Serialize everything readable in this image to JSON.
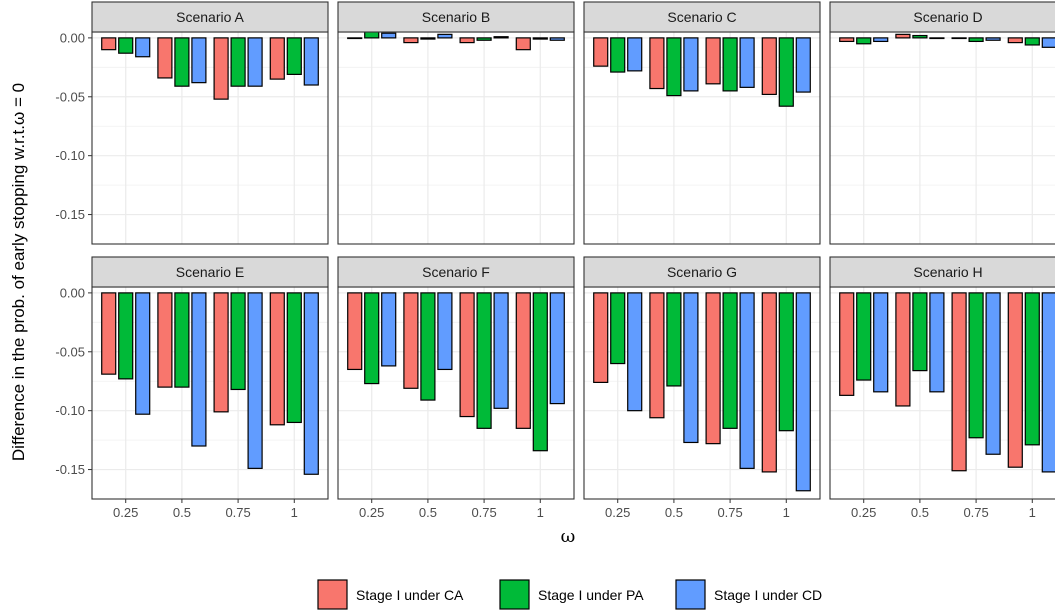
{
  "chart_data": {
    "type": "bar",
    "ylabel": "Difference in the prob. of early stopping w.r.t.ω = 0",
    "xlabel": "ω",
    "categories": [
      "0.25",
      "0.5",
      "0.75",
      "1"
    ],
    "ylim": [
      -0.175,
      0.005
    ],
    "yticks": [
      0.0,
      -0.05,
      -0.1,
      -0.15
    ],
    "ytick_labels": [
      "0.00",
      "-0.05",
      "-0.10",
      "-0.15"
    ],
    "grid": true,
    "legend_position": "bottom",
    "series_names": [
      "Stage I under CA",
      "Stage I under PA",
      "Stage I under CD"
    ],
    "colors": [
      "#F8766D",
      "#00BA38",
      "#619CFF"
    ],
    "panels": [
      {
        "title": "Scenario A",
        "series": [
          {
            "name": "Stage I under CA",
            "values": [
              -0.01,
              -0.034,
              -0.052,
              -0.035
            ]
          },
          {
            "name": "Stage I under PA",
            "values": [
              -0.013,
              -0.041,
              -0.041,
              -0.031
            ]
          },
          {
            "name": "Stage I under CD",
            "values": [
              -0.016,
              -0.038,
              -0.041,
              -0.04
            ]
          }
        ]
      },
      {
        "title": "Scenario B",
        "series": [
          {
            "name": "Stage I under CA",
            "values": [
              0.0,
              -0.004,
              -0.004,
              -0.01
            ]
          },
          {
            "name": "Stage I under PA",
            "values": [
              0.008,
              -0.001,
              -0.002,
              -0.001
            ]
          },
          {
            "name": "Stage I under CD",
            "values": [
              0.004,
              0.003,
              0.001,
              -0.002
            ]
          }
        ]
      },
      {
        "title": "Scenario C",
        "series": [
          {
            "name": "Stage I under CA",
            "values": [
              -0.024,
              -0.043,
              -0.039,
              -0.048
            ]
          },
          {
            "name": "Stage I under PA",
            "values": [
              -0.029,
              -0.049,
              -0.045,
              -0.058
            ]
          },
          {
            "name": "Stage I under CD",
            "values": [
              -0.028,
              -0.045,
              -0.042,
              -0.046
            ]
          }
        ]
      },
      {
        "title": "Scenario D",
        "series": [
          {
            "name": "Stage I under CA",
            "values": [
              -0.003,
              0.003,
              0.0,
              -0.004
            ]
          },
          {
            "name": "Stage I under PA",
            "values": [
              -0.005,
              0.002,
              -0.003,
              -0.006
            ]
          },
          {
            "name": "Stage I under CD",
            "values": [
              -0.003,
              0.0,
              -0.002,
              -0.008
            ]
          }
        ]
      },
      {
        "title": "Scenario E",
        "series": [
          {
            "name": "Stage I under CA",
            "values": [
              -0.069,
              -0.08,
              -0.101,
              -0.112
            ]
          },
          {
            "name": "Stage I under PA",
            "values": [
              -0.073,
              -0.08,
              -0.082,
              -0.11
            ]
          },
          {
            "name": "Stage I under CD",
            "values": [
              -0.103,
              -0.13,
              -0.149,
              -0.154
            ]
          }
        ]
      },
      {
        "title": "Scenario F",
        "series": [
          {
            "name": "Stage I under CA",
            "values": [
              -0.065,
              -0.081,
              -0.105,
              -0.115
            ]
          },
          {
            "name": "Stage I under PA",
            "values": [
              -0.077,
              -0.091,
              -0.115,
              -0.134
            ]
          },
          {
            "name": "Stage I under CD",
            "values": [
              -0.062,
              -0.065,
              -0.098,
              -0.094
            ]
          }
        ]
      },
      {
        "title": "Scenario G",
        "series": [
          {
            "name": "Stage I under CA",
            "values": [
              -0.076,
              -0.106,
              -0.128,
              -0.152
            ]
          },
          {
            "name": "Stage I under PA",
            "values": [
              -0.06,
              -0.079,
              -0.115,
              -0.117
            ]
          },
          {
            "name": "Stage I under CD",
            "values": [
              -0.1,
              -0.127,
              -0.149,
              -0.168
            ]
          }
        ]
      },
      {
        "title": "Scenario H",
        "series": [
          {
            "name": "Stage I under CA",
            "values": [
              -0.087,
              -0.096,
              -0.151,
              -0.148
            ]
          },
          {
            "name": "Stage I under PA",
            "values": [
              -0.074,
              -0.066,
              -0.123,
              -0.129
            ]
          },
          {
            "name": "Stage I under CD",
            "values": [
              -0.084,
              -0.084,
              -0.137,
              -0.152
            ]
          }
        ]
      }
    ]
  }
}
